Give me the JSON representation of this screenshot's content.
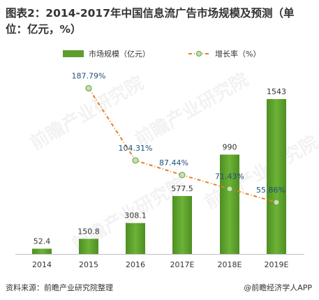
{
  "title": "图表2：2014-2017年中国信息流广告市场规模及预测（单位：亿元，%）",
  "footer": {
    "source": "资料来源：前瞻产业研究院整理",
    "brand": "@前瞻经济学人APP"
  },
  "watermark": "前瞻产业研究院",
  "chart_data": {
    "type": "bar",
    "categories": [
      "2014",
      "2015",
      "2016",
      "2017E",
      "2018E",
      "2019E"
    ],
    "series": [
      {
        "name": "市场规模（亿元）",
        "type": "bar",
        "values": [
          52.4,
          150.8,
          308.1,
          577.5,
          990,
          1543
        ],
        "labels": [
          "52.4",
          "150.8",
          "308.1",
          "577.5",
          "990",
          "1543"
        ],
        "color": "#5E9E2D"
      },
      {
        "name": "增长率（%）",
        "type": "line",
        "values": [
          null,
          187.79,
          104.31,
          87.44,
          71.43,
          55.86
        ],
        "labels": [
          "",
          "187.79%",
          "104.31%",
          "87.44%",
          "71.43%",
          "55.86%"
        ],
        "color": "#E67E22"
      }
    ],
    "legend": "top",
    "grid": false
  }
}
